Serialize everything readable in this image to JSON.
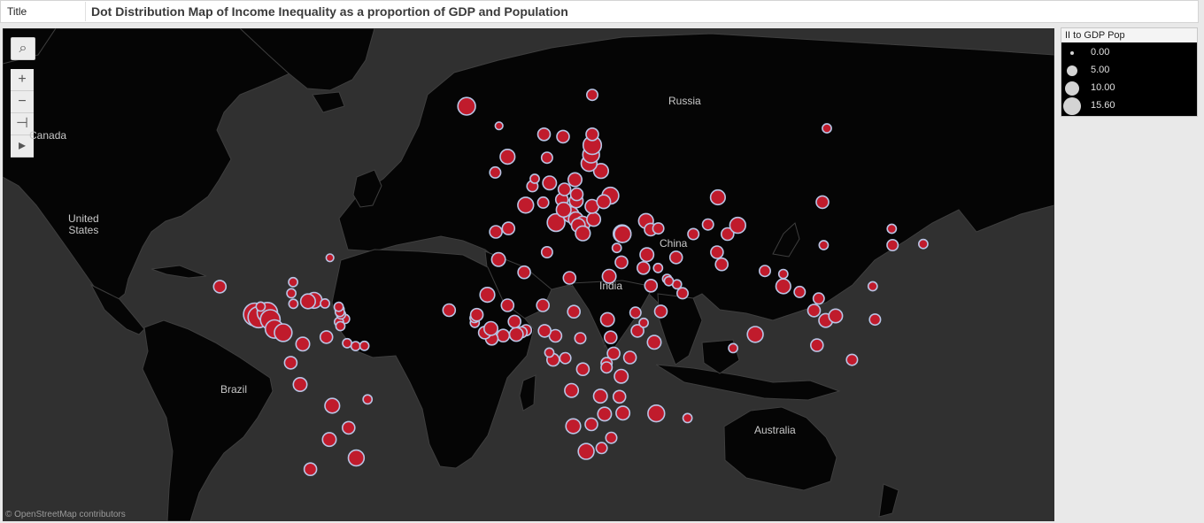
{
  "header": {
    "label": "Title",
    "title": "Dot Distribution Map of Income Inequality as a proportion of GDP and Population"
  },
  "map": {
    "attribution": "© OpenStreetMap contributors",
    "labels": {
      "russia": "Russia",
      "canada": "Canada",
      "united_states": "United\nStates",
      "china": "China",
      "india": "India",
      "brazil": "Brazil",
      "australia": "Australia"
    },
    "controls": {
      "search": "⌕",
      "zoom_in": "+",
      "zoom_out": "−",
      "pin": "⊣",
      "expand": "▸"
    },
    "colors": {
      "land": "#050505",
      "water": "#303030",
      "border": "#3e3e3e",
      "dot_fill": "#c01b2c",
      "dot_stroke": "#b8c4e4"
    }
  },
  "legend": {
    "title": "II to GDP Pop",
    "entries": [
      {
        "label": "0.00",
        "value": 0.0
      },
      {
        "label": "5.00",
        "value": 5.0
      },
      {
        "label": "10.00",
        "value": 10.0
      },
      {
        "label": "15.60",
        "value": 15.6
      }
    ]
  },
  "chart_data": {
    "type": "dot-map",
    "size_field": "II to GDP Pop",
    "size_range": [
      0,
      15.6
    ],
    "points": [
      {
        "lat": 14.6,
        "lon": -90.5,
        "v": 15.6
      },
      {
        "lat": 13.7,
        "lon": -89.2,
        "v": 13
      },
      {
        "lat": 15.2,
        "lon": -86.2,
        "v": 12
      },
      {
        "lat": 12.9,
        "lon": -85.2,
        "v": 11
      },
      {
        "lat": 9.7,
        "lon": -83.8,
        "v": 9
      },
      {
        "lat": 8.5,
        "lon": -80.8,
        "v": 8
      },
      {
        "lat": 19.2,
        "lon": -70.2,
        "v": 6
      },
      {
        "lat": 18.9,
        "lon": -72.3,
        "v": 5
      },
      {
        "lat": 4.6,
        "lon": -74.1,
        "v": 4
      },
      {
        "lat": 7.0,
        "lon": -66.0,
        "v": 3
      },
      {
        "lat": -1.8,
        "lon": -78.2,
        "v": 3
      },
      {
        "lat": -9.2,
        "lon": -75.0,
        "v": 4
      },
      {
        "lat": -16.3,
        "lon": -64.0,
        "v": 5
      },
      {
        "lat": -23.4,
        "lon": -58.4,
        "v": 3
      },
      {
        "lat": -14.2,
        "lon": -51.9,
        "v": 1
      },
      {
        "lat": -32.5,
        "lon": -55.8,
        "v": 6
      },
      {
        "lat": -35.7,
        "lon": -71.5,
        "v": 3
      },
      {
        "lat": -27.0,
        "lon": -65.0,
        "v": 4
      },
      {
        "lat": 17.2,
        "lon": -88.5,
        "v": 1
      },
      {
        "lat": 23.6,
        "lon": -102.5,
        "v": 3
      },
      {
        "lat": 21.5,
        "lon": -78.0,
        "v": 1
      },
      {
        "lat": 18.1,
        "lon": -77.3,
        "v": 1
      },
      {
        "lat": 13.1,
        "lon": -59.6,
        "v": 1
      },
      {
        "lat": 12.1,
        "lon": -61.7,
        "v": 1
      },
      {
        "lat": 10.7,
        "lon": -61.2,
        "v": 1
      },
      {
        "lat": 14.6,
        "lon": -61.0,
        "v": 1
      },
      {
        "lat": 16.3,
        "lon": -61.5,
        "v": 1
      },
      {
        "lat": 15.4,
        "lon": -61.4,
        "v": 1
      },
      {
        "lat": 17.1,
        "lon": -61.8,
        "v": 1
      },
      {
        "lat": 4.9,
        "lon": -58.9,
        "v": 1
      },
      {
        "lat": 3.9,
        "lon": -56.0,
        "v": 1
      },
      {
        "lat": 4.0,
        "lon": -53.0,
        "v": 1
      },
      {
        "lat": 32.3,
        "lon": -64.8,
        "v": 0.5
      },
      {
        "lat": 25.0,
        "lon": -77.4,
        "v": 1
      },
      {
        "lat": 18.2,
        "lon": -66.5,
        "v": 1
      },
      {
        "lat": 64.9,
        "lon": -18.0,
        "v": 8
      },
      {
        "lat": 61.9,
        "lon": -6.9,
        "v": 0.5
      },
      {
        "lat": 56.5,
        "lon": -4.0,
        "v": 5
      },
      {
        "lat": 53.4,
        "lon": -8.2,
        "v": 2
      },
      {
        "lat": 46.2,
        "lon": 2.2,
        "v": 6
      },
      {
        "lat": 40.4,
        "lon": -3.7,
        "v": 3
      },
      {
        "lat": 39.5,
        "lon": -8.0,
        "v": 3
      },
      {
        "lat": 51.2,
        "lon": 10.4,
        "v": 4
      },
      {
        "lat": 50.5,
        "lon": 4.5,
        "v": 2
      },
      {
        "lat": 52.1,
        "lon": 5.3,
        "v": 1
      },
      {
        "lat": 46.8,
        "lon": 8.2,
        "v": 2
      },
      {
        "lat": 47.5,
        "lon": 14.6,
        "v": 3
      },
      {
        "lat": 41.9,
        "lon": 12.6,
        "v": 8
      },
      {
        "lat": 43.9,
        "lon": 17.7,
        "v": 6
      },
      {
        "lat": 45.1,
        "lon": 15.2,
        "v": 5
      },
      {
        "lat": 42.7,
        "lon": 19.4,
        "v": 5
      },
      {
        "lat": 41.6,
        "lon": 21.7,
        "v": 5
      },
      {
        "lat": 41.2,
        "lon": 20.2,
        "v": 4
      },
      {
        "lat": 39.1,
        "lon": 21.8,
        "v": 5
      },
      {
        "lat": 42.7,
        "lon": 25.5,
        "v": 4
      },
      {
        "lat": 45.9,
        "lon": 24.9,
        "v": 4
      },
      {
        "lat": 47.2,
        "lon": 19.5,
        "v": 4
      },
      {
        "lat": 48.7,
        "lon": 19.7,
        "v": 3
      },
      {
        "lat": 49.8,
        "lon": 15.5,
        "v": 3
      },
      {
        "lat": 51.9,
        "lon": 19.1,
        "v": 4
      },
      {
        "lat": 48.4,
        "lon": 31.2,
        "v": 7
      },
      {
        "lat": 47.0,
        "lon": 28.9,
        "v": 4
      },
      {
        "lat": 53.7,
        "lon": 28.0,
        "v": 5
      },
      {
        "lat": 55.2,
        "lon": 23.9,
        "v": 6
      },
      {
        "lat": 56.9,
        "lon": 24.6,
        "v": 7
      },
      {
        "lat": 58.6,
        "lon": 25.0,
        "v": 9
      },
      {
        "lat": 60.5,
        "lon": 25.0,
        "v": 3
      },
      {
        "lat": 60.1,
        "lon": 15.0,
        "v": 3
      },
      {
        "lat": 60.5,
        "lon": 8.5,
        "v": 3
      },
      {
        "lat": 56.3,
        "lon": 9.5,
        "v": 2
      },
      {
        "lat": 66.5,
        "lon": 25.0,
        "v": 2
      },
      {
        "lat": 39.0,
        "lon": 35.2,
        "v": 8
      },
      {
        "lat": 38.9,
        "lon": 35.4,
        "v": 7
      },
      {
        "lat": 42.3,
        "lon": 43.4,
        "v": 5
      },
      {
        "lat": 40.1,
        "lon": 45.0,
        "v": 3
      },
      {
        "lat": 40.4,
        "lon": 47.6,
        "v": 2
      },
      {
        "lat": 35.1,
        "lon": 33.4,
        "v": 1
      },
      {
        "lat": 31.0,
        "lon": 35.0,
        "v": 3
      },
      {
        "lat": 29.3,
        "lon": 42.5,
        "v": 3
      },
      {
        "lat": 33.2,
        "lon": 43.7,
        "v": 4
      },
      {
        "lat": 32.4,
        "lon": 53.7,
        "v": 3
      },
      {
        "lat": 23.9,
        "lon": 45.1,
        "v": 3
      },
      {
        "lat": 15.6,
        "lon": 48.5,
        "v": 3
      },
      {
        "lat": 21.5,
        "lon": 55.9,
        "v": 2
      },
      {
        "lat": 24.3,
        "lon": 54.0,
        "v": 1
      },
      {
        "lat": 26.0,
        "lon": 50.6,
        "v": 1
      },
      {
        "lat": 25.3,
        "lon": 51.2,
        "v": 1
      },
      {
        "lat": 29.3,
        "lon": 47.5,
        "v": 1
      },
      {
        "lat": 38.9,
        "lon": 71.3,
        "v": 3
      },
      {
        "lat": 41.4,
        "lon": 64.6,
        "v": 2
      },
      {
        "lat": 38.9,
        "lon": 59.6,
        "v": 2
      },
      {
        "lat": 41.2,
        "lon": 74.8,
        "v": 6
      },
      {
        "lat": 48.0,
        "lon": 68.0,
        "v": 5
      },
      {
        "lat": 33.9,
        "lon": 67.7,
        "v": 3
      },
      {
        "lat": 30.4,
        "lon": 69.3,
        "v": 3
      },
      {
        "lat": 28.4,
        "lon": 84.1,
        "v": 2
      },
      {
        "lat": 27.5,
        "lon": 90.4,
        "v": 1
      },
      {
        "lat": 23.7,
        "lon": 90.4,
        "v": 5
      },
      {
        "lat": 7.9,
        "lon": 80.8,
        "v": 6
      },
      {
        "lat": 3.2,
        "lon": 73.2,
        "v": 1
      },
      {
        "lat": 21.9,
        "lon": 96.0,
        "v": 2
      },
      {
        "lat": 19.8,
        "lon": 102.5,
        "v": 2
      },
      {
        "lat": 15.9,
        "lon": 100.9,
        "v": 3
      },
      {
        "lat": 12.6,
        "lon": 104.9,
        "v": 4
      },
      {
        "lat": 14.1,
        "lon": 108.3,
        "v": 4
      },
      {
        "lat": 4.2,
        "lon": 101.9,
        "v": 3
      },
      {
        "lat": 12.9,
        "lon": 121.8,
        "v": 2
      },
      {
        "lat": -0.8,
        "lon": 113.9,
        "v": 2
      },
      {
        "lat": 46.9,
        "lon": 103.8,
        "v": 3
      },
      {
        "lat": 35.9,
        "lon": 104.2,
        "v": 1
      },
      {
        "lat": 36.2,
        "lon": 138.3,
        "v": 1
      },
      {
        "lat": 35.9,
        "lon": 127.8,
        "v": 2
      },
      {
        "lat": 40.3,
        "lon": 127.5,
        "v": 1
      },
      {
        "lat": 23.7,
        "lon": 121.0,
        "v": 1
      },
      {
        "lat": 61.5,
        "lon": 105.3,
        "v": 1
      },
      {
        "lat": 28.0,
        "lon": 1.7,
        "v": 3
      },
      {
        "lat": 31.8,
        "lon": -7.1,
        "v": 4
      },
      {
        "lat": 33.9,
        "lon": 9.5,
        "v": 2
      },
      {
        "lat": 26.3,
        "lon": 17.2,
        "v": 3
      },
      {
        "lat": 26.8,
        "lon": 30.8,
        "v": 4
      },
      {
        "lat": 12.9,
        "lon": 30.2,
        "v": 4
      },
      {
        "lat": 6.9,
        "lon": 31.3,
        "v": 3
      },
      {
        "lat": 15.2,
        "lon": 39.8,
        "v": 2
      },
      {
        "lat": 9.1,
        "lon": 40.5,
        "v": 3
      },
      {
        "lat": 5.2,
        "lon": 46.2,
        "v": 4
      },
      {
        "lat": 11.8,
        "lon": 42.6,
        "v": 1
      },
      {
        "lat": 0.0,
        "lon": 37.9,
        "v": 3
      },
      {
        "lat": 1.4,
        "lon": 32.3,
        "v": 3
      },
      {
        "lat": -1.9,
        "lon": 29.9,
        "v": 2
      },
      {
        "lat": -3.4,
        "lon": 29.9,
        "v": 2
      },
      {
        "lat": -6.4,
        "lon": 34.9,
        "v": 4
      },
      {
        "lat": -13.3,
        "lon": 34.3,
        "v": 3
      },
      {
        "lat": -18.7,
        "lon": 35.5,
        "v": 4
      },
      {
        "lat": -13.1,
        "lon": 27.8,
        "v": 4
      },
      {
        "lat": -19.0,
        "lon": 29.2,
        "v": 4
      },
      {
        "lat": -22.3,
        "lon": 24.7,
        "v": 3
      },
      {
        "lat": -22.9,
        "lon": 18.5,
        "v": 5
      },
      {
        "lat": -30.6,
        "lon": 22.9,
        "v": 6
      },
      {
        "lat": -26.5,
        "lon": 31.5,
        "v": 2
      },
      {
        "lat": -29.6,
        "lon": 28.2,
        "v": 2
      },
      {
        "lat": -18.8,
        "lon": 46.9,
        "v": 7
      },
      {
        "lat": -20.3,
        "lon": 57.6,
        "v": 1
      },
      {
        "lat": -11.2,
        "lon": 17.9,
        "v": 4
      },
      {
        "lat": -4.0,
        "lon": 21.8,
        "v": 3
      },
      {
        "lat": -0.2,
        "lon": 15.8,
        "v": 2
      },
      {
        "lat": -0.8,
        "lon": 11.6,
        "v": 3
      },
      {
        "lat": 7.4,
        "lon": 12.4,
        "v": 3
      },
      {
        "lat": 1.7,
        "lon": 10.3,
        "v": 1
      },
      {
        "lat": 6.6,
        "lon": 20.9,
        "v": 2
      },
      {
        "lat": 15.5,
        "lon": 18.7,
        "v": 3
      },
      {
        "lat": 17.6,
        "lon": 8.1,
        "v": 3
      },
      {
        "lat": 9.1,
        "lon": 8.7,
        "v": 3
      },
      {
        "lat": 9.3,
        "lon": 2.3,
        "v": 2
      },
      {
        "lat": 8.6,
        "lon": 0.8,
        "v": 2
      },
      {
        "lat": 7.9,
        "lon": -1.0,
        "v": 4
      },
      {
        "lat": 12.2,
        "lon": -1.6,
        "v": 3
      },
      {
        "lat": 17.6,
        "lon": -4.0,
        "v": 3
      },
      {
        "lat": 7.5,
        "lon": -5.5,
        "v": 3
      },
      {
        "lat": 6.4,
        "lon": -9.4,
        "v": 3
      },
      {
        "lat": 8.5,
        "lon": -11.8,
        "v": 3
      },
      {
        "lat": 9.9,
        "lon": -9.7,
        "v": 4
      },
      {
        "lat": 11.8,
        "lon": -15.2,
        "v": 1
      },
      {
        "lat": 13.4,
        "lon": -15.3,
        "v": 1
      },
      {
        "lat": 14.5,
        "lon": -14.5,
        "v": 3
      },
      {
        "lat": 21.0,
        "lon": -10.9,
        "v": 5
      },
      {
        "lat": 16.0,
        "lon": -24.0,
        "v": 3
      }
    ]
  }
}
